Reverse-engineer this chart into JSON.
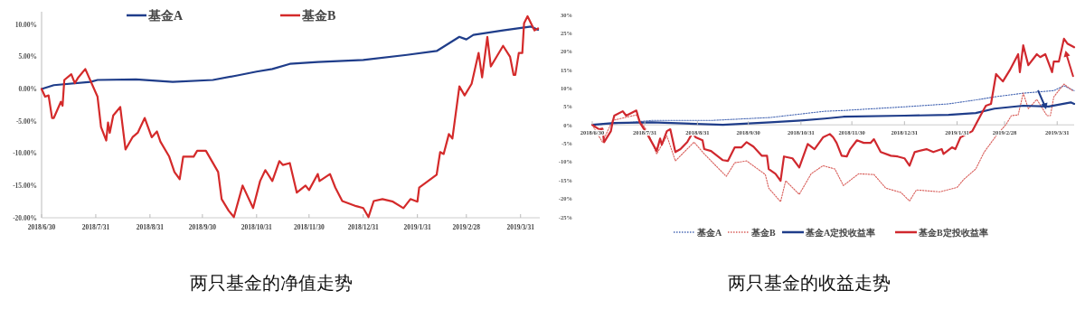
{
  "chart_data": [
    {
      "type": "line",
      "title": "两只基金的净值走势",
      "legend": "top",
      "xlim": [
        "2018-06-30",
        "2019-04-11"
      ],
      "ylim": [
        -20,
        12
      ],
      "xticks": [
        {
          "value": "2018-06-30",
          "label": "2018/6/30"
        },
        {
          "value": "2018-07-31",
          "label": "2018/7/31"
        },
        {
          "value": "2018-08-31",
          "label": "2018/8/31"
        },
        {
          "value": "2018-09-30",
          "label": "2018/9/30"
        },
        {
          "value": "2018-10-31",
          "label": "2018/10/31"
        },
        {
          "value": "2018-11-30",
          "label": "2018/11/30"
        },
        {
          "value": "2018-12-31",
          "label": "2018/12/31"
        },
        {
          "value": "2019-01-31",
          "label": "2019/1/31"
        },
        {
          "value": "2019-02-28",
          "label": "2019/2/28"
        },
        {
          "value": "2019-03-31",
          "label": "2019/3/31"
        }
      ],
      "yticks": [
        {
          "value": -20,
          "label": "-20.00%"
        },
        {
          "value": -15,
          "label": "-15.00%"
        },
        {
          "value": -10,
          "label": "-10.00%"
        },
        {
          "value": -5,
          "label": "-5.00%"
        },
        {
          "value": 0,
          "label": "0.00%"
        },
        {
          "value": 5,
          "label": "5.00%"
        },
        {
          "value": 10,
          "label": "10.00%"
        }
      ],
      "series": [
        {
          "name": "基金A",
          "color": "#1f3d8a",
          "line_style": "solid",
          "x": [
            "2018-06-30",
            "2018-07-07",
            "2018-07-28",
            "2018-08-01",
            "2018-08-23",
            "2018-09-13",
            "2018-10-06",
            "2018-10-20",
            "2018-10-31",
            "2018-11-09",
            "2018-11-19",
            "2018-12-05",
            "2018-12-31",
            "2019-01-25",
            "2019-02-11",
            "2019-02-24",
            "2019-02-28",
            "2019-03-04",
            "2019-03-21",
            "2019-04-06",
            "2019-04-10"
          ],
          "values": [
            0,
            0.6,
            1.1,
            1.4,
            1.5,
            1.1,
            1.4,
            2.1,
            2.7,
            3.1,
            3.9,
            4.2,
            4.5,
            5.3,
            5.9,
            8.1,
            7.7,
            8.4,
            9.1,
            9.7,
            9.2
          ]
        },
        {
          "name": "基金B",
          "color": "#d42a2a",
          "line_style": "solid",
          "x": [
            "2018-06-30",
            "2018-07-02",
            "2018-07-04",
            "2018-07-06",
            "2018-07-07",
            "2018-07-11",
            "2018-07-12",
            "2018-07-13",
            "2018-07-17",
            "2018-07-19",
            "2018-07-21",
            "2018-07-25",
            "2018-08-01",
            "2018-08-03",
            "2018-08-06",
            "2018-08-07",
            "2018-08-08",
            "2018-08-10",
            "2018-08-14",
            "2018-08-17",
            "2018-08-21",
            "2018-08-24",
            "2018-08-28",
            "2018-09-01",
            "2018-09-04",
            "2018-09-06",
            "2018-09-11",
            "2018-09-14",
            "2018-09-17",
            "2018-09-19",
            "2018-09-25",
            "2018-09-27",
            "2018-10-02",
            "2018-10-09",
            "2018-10-11",
            "2018-10-15",
            "2018-10-18",
            "2018-10-23",
            "2018-10-29",
            "2018-11-02",
            "2018-11-05",
            "2018-11-09",
            "2018-11-13",
            "2018-11-15",
            "2018-11-19",
            "2018-11-23",
            "2018-11-28",
            "2018-11-30",
            "2018-12-05",
            "2018-12-06",
            "2018-12-12",
            "2018-12-15",
            "2018-12-19",
            "2018-12-27",
            "2018-12-31",
            "2019-01-03",
            "2019-01-06",
            "2019-01-11",
            "2019-01-17",
            "2019-01-23",
            "2019-01-27",
            "2019-01-31",
            "2019-02-01",
            "2019-02-11",
            "2019-02-13",
            "2019-02-15",
            "2019-02-18",
            "2019-02-20",
            "2019-02-24",
            "2019-02-27",
            "2019-03-03",
            "2019-03-07",
            "2019-03-09",
            "2019-03-12",
            "2019-03-14",
            "2019-03-21",
            "2019-03-25",
            "2019-03-27",
            "2019-03-28",
            "2019-03-30",
            "2019-04-01",
            "2019-04-02",
            "2019-04-04",
            "2019-04-08",
            "2019-04-10"
          ],
          "values": [
            0,
            -1.2,
            -1,
            -4.5,
            -4.5,
            -2,
            -2.6,
            1.4,
            2.3,
            0.9,
            1.8,
            3.1,
            -1.2,
            -5.9,
            -8,
            -5.2,
            -6.8,
            -4.1,
            -2.8,
            -9.4,
            -7.5,
            -6.8,
            -4.5,
            -7.5,
            -6.6,
            -8.2,
            -10.5,
            -12.9,
            -14,
            -10.5,
            -10.5,
            -9.6,
            -9.6,
            -12.9,
            -17.1,
            -18.9,
            -19.9,
            -15,
            -18.5,
            -14.3,
            -12.6,
            -14.3,
            -11.2,
            -11.8,
            -11.5,
            -16.1,
            -15,
            -15.7,
            -13.2,
            -14.3,
            -13.2,
            -15.3,
            -17.4,
            -18.2,
            -18.5,
            -19.9,
            -17.4,
            -17.1,
            -17.5,
            -18.5,
            -17.1,
            -17.5,
            -15.3,
            -13.3,
            -9.8,
            -10.1,
            -7,
            -7.7,
            0.4,
            -1,
            0.8,
            5.6,
            1.8,
            8.1,
            3.5,
            6.7,
            5,
            2.2,
            2.2,
            5.6,
            5.6,
            10.2,
            11.3,
            9.1,
            9.4
          ]
        }
      ]
    },
    {
      "type": "line",
      "title": "两只基金的收益走势",
      "legend": "bottom",
      "xlim": [
        "2018-06-30",
        "2019-04-10"
      ],
      "ylim": [
        -25,
        30
      ],
      "xticks": [
        {
          "value": "2018-06-30",
          "label": "2018/6/30"
        },
        {
          "value": "2018-07-31",
          "label": "2018/7/31"
        },
        {
          "value": "2018-08-31",
          "label": "2018/8/31"
        },
        {
          "value": "2018-09-30",
          "label": "2018/9/30"
        },
        {
          "value": "2018-10-31",
          "label": "2018/10/31"
        },
        {
          "value": "2018-11-30",
          "label": "2018/11/30"
        },
        {
          "value": "2018-12-31",
          "label": "2018/12/31"
        },
        {
          "value": "2019-01-31",
          "label": "2019/1/31"
        },
        {
          "value": "2019-02-28",
          "label": "2019/2/28"
        },
        {
          "value": "2019-03-31",
          "label": "2019/3/31"
        }
      ],
      "yticks": [
        {
          "value": -25,
          "label": "-25%"
        },
        {
          "value": -20,
          "label": "-20%"
        },
        {
          "value": -15,
          "label": "-15%"
        },
        {
          "value": -10,
          "label": "-10%"
        },
        {
          "value": -5,
          "label": "-5%"
        },
        {
          "value": 0,
          "label": "0%"
        },
        {
          "value": 5,
          "label": "5%"
        },
        {
          "value": 10,
          "label": "10%"
        },
        {
          "value": 15,
          "label": "15%"
        },
        {
          "value": 20,
          "label": "20%"
        },
        {
          "value": 25,
          "label": "25%"
        },
        {
          "value": 30,
          "label": "30%"
        }
      ],
      "series": [
        {
          "name": "基金A",
          "color": "#4a6ab5",
          "line_style": "dotted",
          "x": [
            "2018-06-30",
            "2018-07-19",
            "2018-08-04",
            "2018-09-08",
            "2018-10-13",
            "2018-11-14",
            "2018-11-25",
            "2018-12-31",
            "2019-01-26",
            "2019-02-13",
            "2019-02-22",
            "2019-03-11",
            "2019-03-29",
            "2019-04-04",
            "2019-04-10"
          ],
          "values": [
            0,
            0.5,
            1.2,
            1.2,
            2,
            3.7,
            3.9,
            4.9,
            5.7,
            6.9,
            7.6,
            8.6,
            9.3,
            10.6,
            9.3
          ]
        },
        {
          "name": "基金B",
          "color": "#d9605c",
          "line_style": "dotted",
          "x": [
            "2018-06-30",
            "2018-07-06",
            "2018-07-12",
            "2018-07-26",
            "2018-08-02",
            "2018-08-07",
            "2018-08-13",
            "2018-08-18",
            "2018-08-29",
            "2018-09-04",
            "2018-09-17",
            "2018-09-22",
            "2018-09-29",
            "2018-10-10",
            "2018-10-12",
            "2018-10-19",
            "2018-10-22",
            "2018-10-30",
            "2018-11-06",
            "2018-11-13",
            "2018-11-20",
            "2018-11-25",
            "2018-12-04",
            "2018-12-13",
            "2018-12-20",
            "2018-12-29",
            "2019-01-03",
            "2019-01-07",
            "2019-01-21",
            "2019-01-31",
            "2019-02-04",
            "2019-02-11",
            "2019-02-16",
            "2019-02-23",
            "2019-03-01",
            "2019-03-04",
            "2019-03-08",
            "2019-03-11",
            "2019-03-14",
            "2019-03-19",
            "2019-03-25",
            "2019-03-27",
            "2019-03-29",
            "2019-04-04",
            "2019-04-09"
          ],
          "values": [
            0,
            -4.7,
            1.2,
            2.7,
            -2.2,
            -7.9,
            -3,
            -9.8,
            -4.7,
            -7.9,
            -14,
            -10.3,
            -9.8,
            -13.5,
            -17.2,
            -20.9,
            -15.2,
            -18.9,
            -13.3,
            -11.1,
            -12,
            -16.5,
            -13.3,
            -13.5,
            -17.2,
            -18.4,
            -20.7,
            -17.7,
            -18.2,
            -17,
            -14.8,
            -12,
            -7.4,
            -3,
            0.2,
            2.5,
            2.7,
            8.6,
            4.4,
            6.9,
            2.5,
            2.5,
            7.6,
            11.1,
            9.3
          ]
        },
        {
          "name": "基金A定投收益率",
          "color": "#1f3d8a",
          "line_style": "solid",
          "x": [
            "2018-06-30",
            "2018-07-13",
            "2018-08-04",
            "2018-09-15",
            "2018-10-13",
            "2018-10-31",
            "2018-11-14",
            "2018-11-25",
            "2018-12-31",
            "2019-01-26",
            "2019-02-11",
            "2019-02-22",
            "2019-03-11",
            "2019-03-26",
            "2019-04-08",
            "2019-04-10"
          ],
          "values": [
            0,
            0.5,
            0.7,
            0,
            0.7,
            1.2,
            1.7,
            2.2,
            2.5,
            2.7,
            3.2,
            4.4,
            5.2,
            5,
            6.1,
            5.7
          ]
        },
        {
          "name": "基金B定投收益率",
          "color": "#d0282e",
          "line_style": "solid",
          "x": [
            "2018-06-30",
            "2018-07-04",
            "2018-07-06",
            "2018-07-07",
            "2018-07-11",
            "2018-07-12",
            "2018-07-13",
            "2018-07-18",
            "2018-07-20",
            "2018-07-26",
            "2018-07-28",
            "2018-08-02",
            "2018-08-07",
            "2018-08-09",
            "2018-08-10",
            "2018-08-13",
            "2018-08-15",
            "2018-08-18",
            "2018-08-21",
            "2018-08-25",
            "2018-08-28",
            "2018-08-30",
            "2018-09-03",
            "2018-09-04",
            "2018-09-08",
            "2018-09-15",
            "2018-09-18",
            "2018-09-22",
            "2018-09-26",
            "2018-09-29",
            "2018-10-03",
            "2018-10-08",
            "2018-10-11",
            "2018-10-12",
            "2018-10-16",
            "2018-10-19",
            "2018-10-21",
            "2018-10-26",
            "2018-10-30",
            "2018-11-04",
            "2018-11-08",
            "2018-11-13",
            "2018-11-17",
            "2018-11-19",
            "2018-11-21",
            "2018-11-24",
            "2018-11-27",
            "2018-11-29",
            "2018-12-03",
            "2018-12-07",
            "2018-12-11",
            "2018-12-13",
            "2018-12-17",
            "2018-12-23",
            "2018-12-27",
            "2018-12-31",
            "2019-01-03",
            "2019-01-06",
            "2019-01-13",
            "2019-01-17",
            "2019-01-22",
            "2019-01-23",
            "2019-01-28",
            "2019-01-30",
            "2019-02-02",
            "2019-02-09",
            "2019-02-14",
            "2019-02-17",
            "2019-02-20",
            "2019-02-23",
            "2019-02-27",
            "2019-03-03",
            "2019-03-08",
            "2019-03-09",
            "2019-03-11",
            "2019-03-14",
            "2019-03-19",
            "2019-03-21",
            "2019-03-24",
            "2019-03-28",
            "2019-03-29",
            "2019-04-01",
            "2019-04-04",
            "2019-04-06",
            "2019-04-10"
          ],
          "values": [
            0,
            -1.2,
            -1,
            -4.7,
            -1.7,
            0.7,
            2.5,
            3.7,
            2.5,
            3.9,
            0.7,
            -3,
            -7.1,
            -3.7,
            -5.4,
            -1.7,
            -1.2,
            -7.4,
            -6.6,
            -4.7,
            -2.2,
            -3.4,
            -4.2,
            -6.6,
            -7.1,
            -9.6,
            -9.8,
            -6.1,
            -6.1,
            -4.7,
            -5.9,
            -8.4,
            -8.4,
            -12,
            -13.3,
            -15.2,
            -8.6,
            -9.1,
            -11.6,
            -5.2,
            -6.6,
            -3.4,
            -2.5,
            -3.4,
            -4.9,
            -8.4,
            -8.6,
            -6.6,
            -4.2,
            -4.9,
            -4.9,
            -3.9,
            -7.4,
            -8.4,
            -8.6,
            -9.1,
            -11.1,
            -7.4,
            -6.6,
            -7.4,
            -6.6,
            -7.9,
            -6.1,
            -6.6,
            -3.4,
            -1.7,
            2.7,
            5.2,
            5.7,
            13.8,
            11.8,
            14.8,
            19.2,
            14.3,
            21.6,
            16.2,
            19.2,
            18.4,
            19.2,
            14.3,
            17.2,
            17.2,
            23.4,
            22.1,
            21.1
          ]
        }
      ]
    }
  ]
}
